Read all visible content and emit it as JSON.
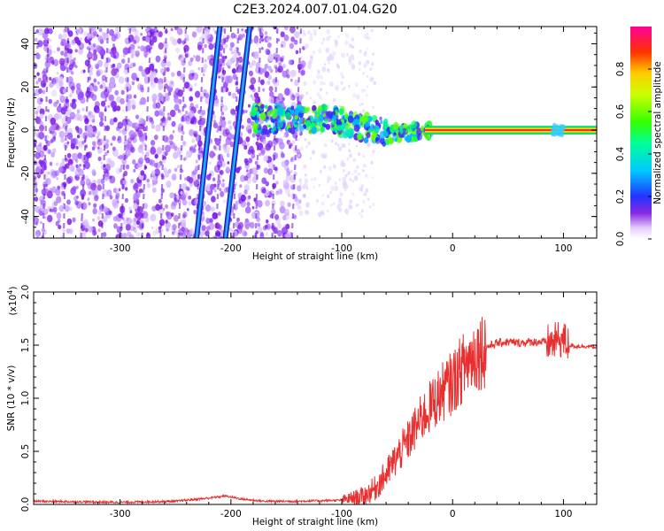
{
  "title": "C2E3.2024.007.01.04.G20",
  "chart_data": [
    {
      "type": "heatmap",
      "xlabel": "Height of straight line (km)",
      "ylabel": "Frequency (Hz)",
      "xlim": [
        -378,
        130
      ],
      "ylim": [
        -50,
        48
      ],
      "xticks": [
        -300,
        -200,
        -100,
        0,
        100
      ],
      "xtick_labels": [
        "-300",
        "-200",
        "-100",
        "0",
        "100"
      ],
      "yticks": [
        -40,
        -20,
        0,
        20,
        40
      ],
      "ytick_labels": [
        "-40",
        "-20",
        "0",
        "20",
        "40"
      ],
      "colorbar": {
        "label": "Normalized spectral amplitude",
        "range": [
          0,
          1
        ],
        "ticks": [
          0.0,
          0.2,
          0.4,
          0.6,
          0.8
        ],
        "tick_labels": [
          "0.0",
          "0.2",
          "0.4",
          "0.6",
          "0.8"
        ],
        "colormap": "rainbow-white-to-magenta"
      },
      "features": [
        {
          "name": "diagonal streak A",
          "from": [
            -231,
            -50
          ],
          "to": [
            -210,
            48
          ],
          "color": "#1e66ff"
        },
        {
          "name": "diagonal streak B",
          "from": [
            -205,
            -50
          ],
          "to": [
            -183,
            48
          ],
          "color": "#1e66ff"
        },
        {
          "name": "signal line",
          "x_range": [
            -25,
            130
          ],
          "frequency": 0,
          "color": "#ff2a2a"
        }
      ]
    },
    {
      "type": "line",
      "xlabel": "Height of straight line (km)",
      "ylabel": "SNR (10 * v/v)",
      "yscale_label": "(x10",
      "yscale_exp": "4",
      "yscale_close": ")",
      "xlim": [
        -378,
        130
      ],
      "ylim": [
        0,
        2.0
      ],
      "xticks": [
        -300,
        -200,
        -100,
        0,
        100
      ],
      "xtick_labels": [
        "-300",
        "-200",
        "-100",
        "0",
        "100"
      ],
      "yticks": [
        0.0,
        0.5,
        1.0,
        1.5,
        2.0
      ],
      "ytick_labels": [
        "0.0",
        "0.5",
        "1.0",
        "1.5",
        "2.0"
      ],
      "series": [
        {
          "color": "#e83030",
          "x": [
            -378,
            -300,
            -250,
            -220,
            -205,
            -190,
            -170,
            -140,
            -100,
            -80,
            -70,
            -60,
            -50,
            -40,
            -30,
            -20,
            -10,
            0,
            10,
            20,
            30,
            40,
            50,
            60,
            70,
            80,
            90,
            95,
            100,
            105,
            110,
            120,
            130
          ],
          "y": [
            0.03,
            0.02,
            0.03,
            0.06,
            0.08,
            0.05,
            0.03,
            0.03,
            0.04,
            0.08,
            0.15,
            0.28,
            0.45,
            0.6,
            0.78,
            0.92,
            1.05,
            1.15,
            1.3,
            1.42,
            1.48,
            1.52,
            1.53,
            1.52,
            1.53,
            1.53,
            1.52,
            1.55,
            1.55,
            1.5,
            1.49,
            1.49,
            1.48
          ]
        }
      ]
    }
  ]
}
